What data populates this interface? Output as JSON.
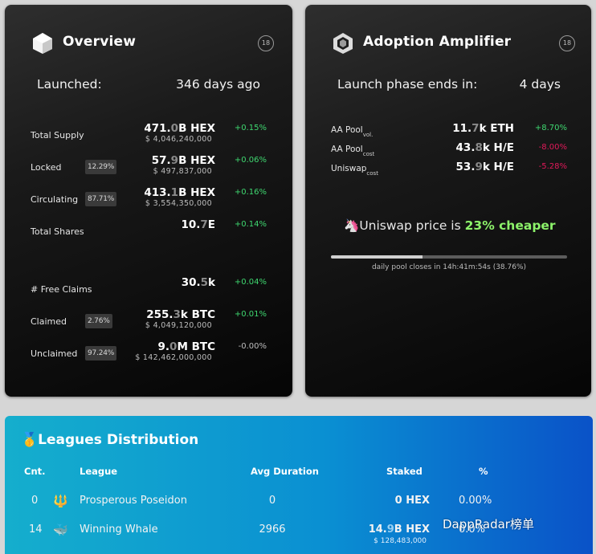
{
  "overview": {
    "title": "Overview",
    "badge": "18",
    "launched_label": "Launched:",
    "launched_value": "346 days ago",
    "rows": [
      {
        "label": "Total Supply",
        "pct": "",
        "value_main": "471.",
        "value_dim": "0",
        "value_unit": "B HEX",
        "sub": "$ 4,046,240,000",
        "change": "+0.15%"
      },
      {
        "label": "Locked",
        "pct": "12.29%",
        "value_main": "57.",
        "value_dim": "9",
        "value_unit": "B HEX",
        "sub": "$ 497,837,000",
        "change": "+0.06%"
      },
      {
        "label": "Circulating",
        "pct": "87.71%",
        "value_main": "413.",
        "value_dim": "1",
        "value_unit": "B HEX",
        "sub": "$ 3,554,350,000",
        "change": "+0.16%"
      },
      {
        "label": "Total Shares",
        "pct": "",
        "value_main": "10.",
        "value_dim": "7",
        "value_unit": "E",
        "sub": "",
        "change": "+0.14%"
      },
      {
        "label": "# Free Claims",
        "pct": "",
        "value_main": "30.",
        "value_dim": "5",
        "value_unit": "k",
        "sub": "",
        "change": "+0.04%"
      },
      {
        "label": "Claimed",
        "pct": "2.76%",
        "value_main": "255.",
        "value_dim": "3",
        "value_unit": "k BTC",
        "sub": "$ 4,049,120,000",
        "change": "+0.01%"
      },
      {
        "label": "Unclaimed",
        "pct": "97.24%",
        "value_main": "9.",
        "value_dim": "0",
        "value_unit": "M BTC",
        "sub": "$ 142,462,000,000",
        "change": "-0.00%"
      }
    ]
  },
  "amplifier": {
    "title": "Adoption Amplifier",
    "badge": "18",
    "phase_label": "Launch phase ends in:",
    "phase_value": "4 days",
    "rows": [
      {
        "label": "AA Pool",
        "sub": "vol.",
        "value_main": "11.",
        "value_dim": "7",
        "value_unit": "k ETH",
        "change": "+8.70%"
      },
      {
        "label": "AA Pool",
        "sub": "cost",
        "value_main": "43.",
        "value_dim": "8",
        "value_unit": "k H/E",
        "change": "-8.00%"
      },
      {
        "label": "Uniswap",
        "sub": "cost",
        "value_main": "53.",
        "value_dim": "9",
        "value_unit": "k H/E",
        "change": "-5.28%"
      }
    ],
    "price_prefix": "Uniswap price is ",
    "price_highlight": "23% cheaper",
    "progress_fraction": 0.3876,
    "progress_caption": "daily pool closes in 14h:41m:54s (38.76%)"
  },
  "leagues": {
    "title": "Leagues Distribution",
    "headers": {
      "count": "Cnt.",
      "league": "League",
      "avg_duration": "Avg Duration",
      "staked": "Staked",
      "percent": "%"
    },
    "rows": [
      {
        "count": "0",
        "icon": "trident-icon",
        "league": "Prosperous Poseidon",
        "avg_duration": "0",
        "staked_main": "0",
        "staked_dim": "",
        "staked_unit": " HEX",
        "staked_sub": "",
        "percent": "0.00%"
      },
      {
        "count": "14",
        "icon": "whale-icon",
        "league": "Winning Whale",
        "avg_duration": "2966",
        "staked_main": "14.",
        "staked_dim": "9",
        "staked_unit": "B HEX",
        "staked_sub": "$ 128,483,000",
        "percent": "0.0%"
      }
    ]
  },
  "watermark": "DappRadar榜单",
  "colors": {
    "positive": "#3fd870",
    "negative": "#e2195a",
    "highlight": "#8cf26a",
    "league_bg": "#0a8fd2"
  }
}
